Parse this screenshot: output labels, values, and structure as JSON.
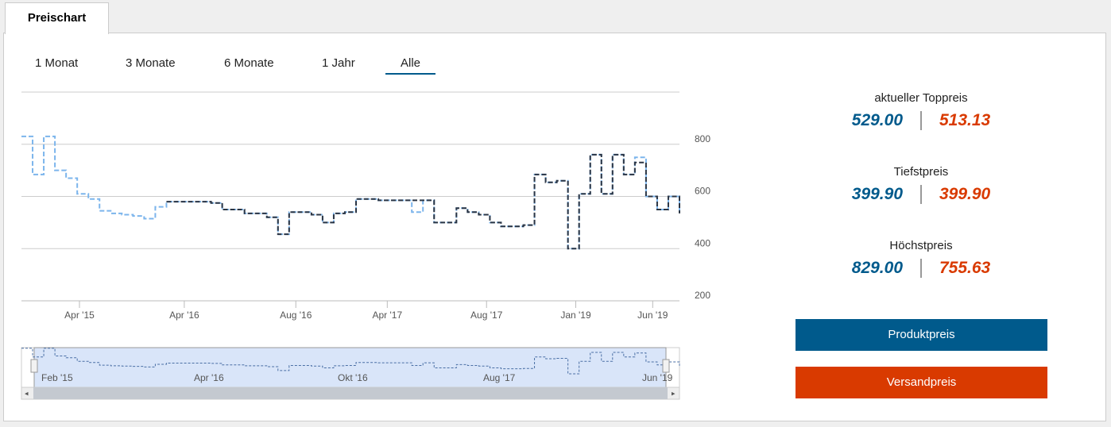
{
  "tabs": [
    "Preischart"
  ],
  "range_buttons": [
    "1 Monat",
    "3 Monate",
    "6 Monate",
    "1 Jahr",
    "Alle"
  ],
  "selected_range": 4,
  "chart_data": {
    "type": "line",
    "step": true,
    "series": [
      {
        "color": "#7cb5ec",
        "values": [
          830,
          684,
          830,
          700,
          670,
          610,
          590,
          545,
          535,
          530,
          525,
          515,
          560,
          580,
          580,
          580,
          580,
          575,
          550,
          550,
          535,
          535,
          520,
          455,
          540,
          540,
          530,
          500,
          535,
          540,
          590,
          590,
          585,
          585,
          585,
          540,
          585,
          500,
          500,
          555,
          540,
          530,
          500,
          485,
          485,
          490,
          684,
          654,
          660,
          400,
          610,
          760,
          610,
          760,
          684,
          750,
          600,
          550,
          600,
          535
        ]
      },
      {
        "color": "#2b3544",
        "values": [
          null,
          null,
          null,
          null,
          null,
          null,
          null,
          null,
          null,
          null,
          null,
          null,
          null,
          580,
          580,
          580,
          580,
          575,
          550,
          550,
          535,
          535,
          520,
          455,
          540,
          540,
          530,
          500,
          535,
          540,
          590,
          590,
          585,
          585,
          585,
          585,
          585,
          500,
          500,
          555,
          540,
          530,
          500,
          485,
          485,
          490,
          684,
          654,
          660,
          400,
          610,
          760,
          610,
          760,
          684,
          730,
          600,
          550,
          600,
          535
        ]
      }
    ],
    "xlim": [
      0,
      59
    ],
    "xticks": [
      {
        "value": 5.2,
        "label": "Apr '15"
      },
      {
        "value": 14.6,
        "label": "Apr '16"
      },
      {
        "value": 24.6,
        "label": "Aug '16"
      },
      {
        "value": 32.8,
        "label": "Apr '17"
      },
      {
        "value": 41.7,
        "label": "Aug '17"
      },
      {
        "value": 49.7,
        "label": "Jan '19"
      },
      {
        "value": 56.6,
        "label": "Jun '19"
      }
    ],
    "ylim": [
      200,
      1000
    ],
    "yticks": [
      200,
      400,
      600,
      800
    ],
    "grid": true
  },
  "navigator": {
    "labels": [
      "Feb '15",
      "Apr '16",
      "Okt '16",
      "Aug '17",
      "Jun '19"
    ]
  },
  "stats": [
    {
      "label": "aktueller Toppreis",
      "product": "529.00",
      "shipping": "513.13"
    },
    {
      "label": "Tiefstpreis",
      "product": "399.90",
      "shipping": "399.90"
    },
    {
      "label": "Höchstpreis",
      "product": "829.00",
      "shipping": "755.63"
    }
  ],
  "buttons": [
    {
      "label": "Produktpreis",
      "color": "#005a8c"
    },
    {
      "label": "Versandpreis",
      "color": "#d93a00"
    }
  ]
}
